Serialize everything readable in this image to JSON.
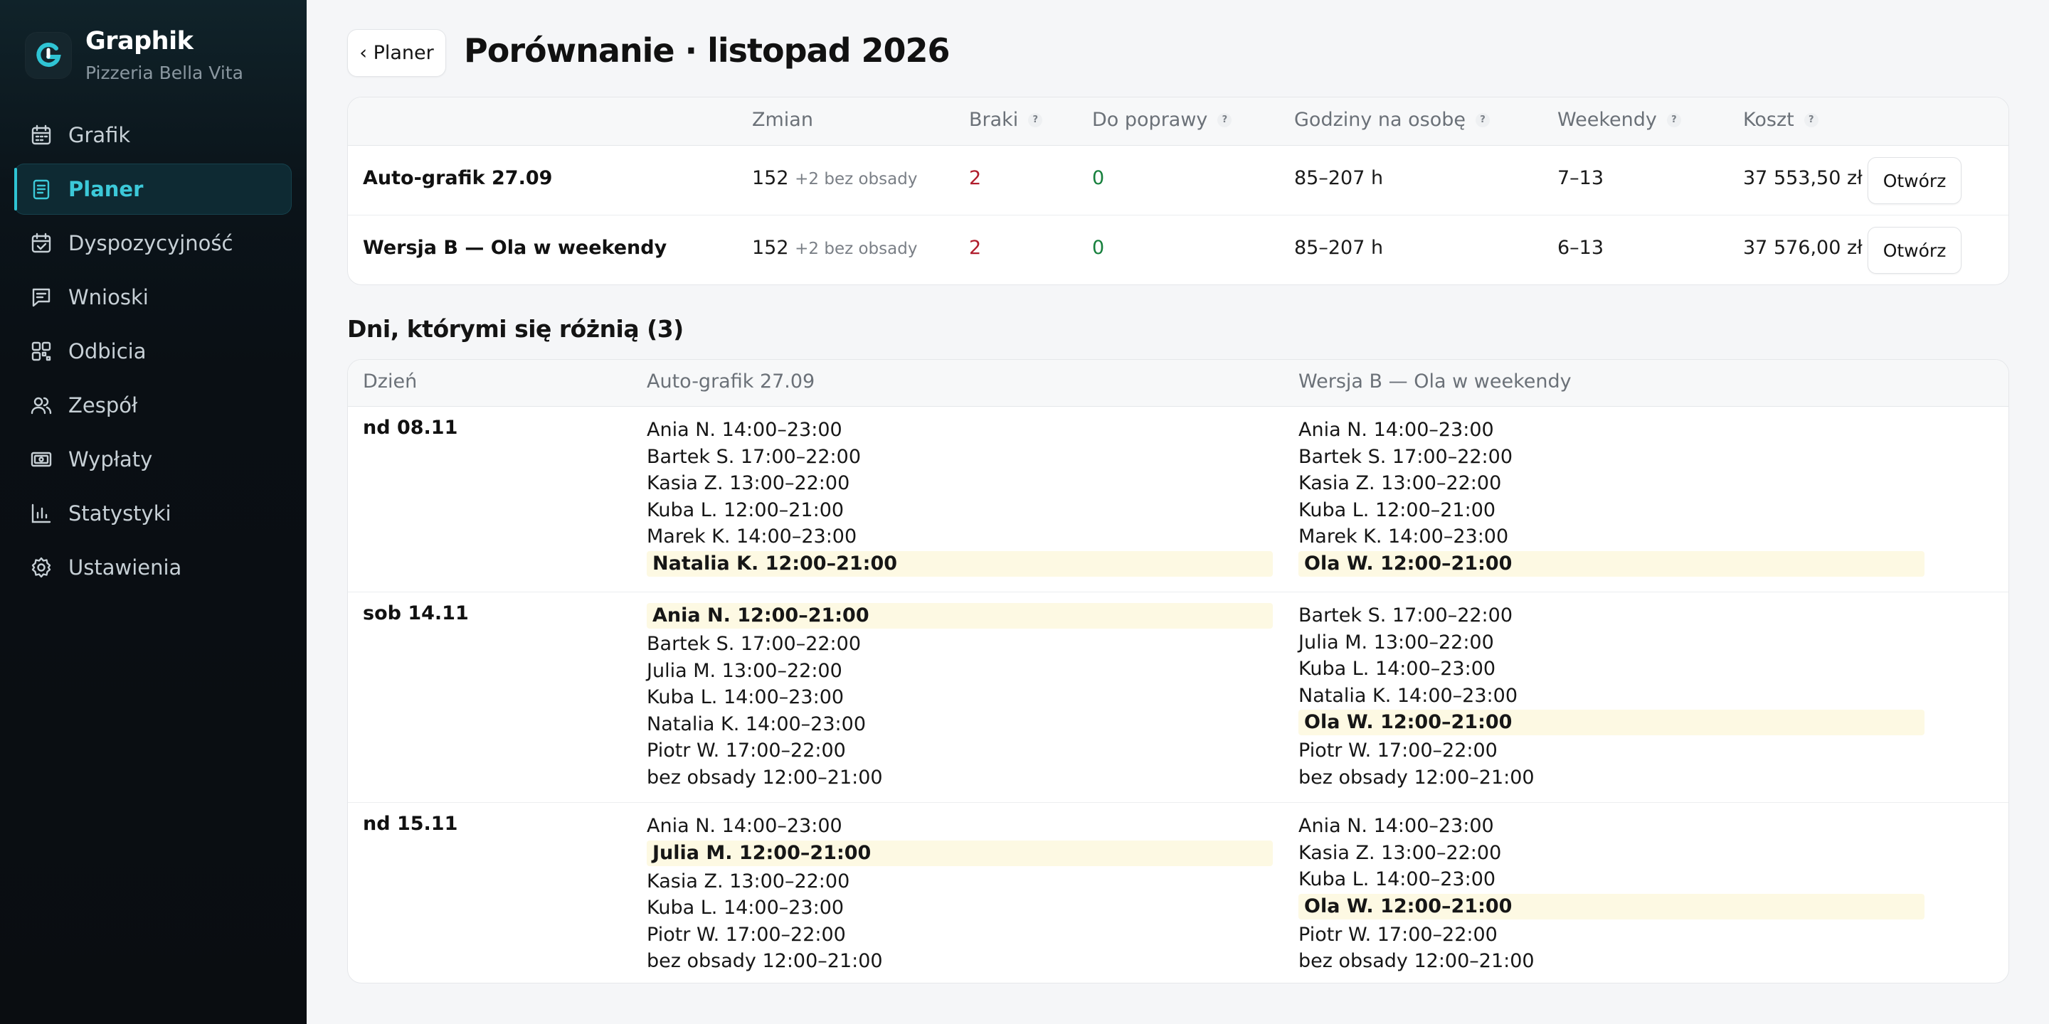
{
  "sidebar": {
    "brand_name": "Graphik",
    "brand_sub": "Pizzeria Bella Vita",
    "accent": "#2fc4d4",
    "items": [
      {
        "label": "Grafik",
        "icon": "calendar-icon"
      },
      {
        "label": "Planer",
        "icon": "clipboard-icon",
        "active": true
      },
      {
        "label": "Dyspozycyjność",
        "icon": "calendar-check-icon"
      },
      {
        "label": "Wnioski",
        "icon": "message-icon"
      },
      {
        "label": "Odbicia",
        "icon": "qr-icon"
      },
      {
        "label": "Zespół",
        "icon": "users-icon"
      },
      {
        "label": "Wypłaty",
        "icon": "banknote-icon"
      },
      {
        "label": "Statystyki",
        "icon": "bar-chart-icon"
      },
      {
        "label": "Ustawienia",
        "icon": "gear-icon"
      }
    ]
  },
  "header": {
    "back_label": "‹ Planer",
    "title": "Porównanie · listopad 2026"
  },
  "compare": {
    "columns": [
      "Zmian",
      "Braki",
      "Do poprawy",
      "Godziny na osobę",
      "Weekendy",
      "Koszt"
    ],
    "help_glyph": "?",
    "rows": [
      {
        "name": "Auto-grafik 27.09",
        "shifts": "152",
        "shifts_extra": "+2 bez obsady",
        "gaps": "2",
        "to_fix": "0",
        "hours": "85–207 h",
        "weekends": "7–13",
        "cost": "37 553,50 zł",
        "open_label": "Otwórz"
      },
      {
        "name": "Wersja B — Ola w weekendy",
        "shifts": "152",
        "shifts_extra": "+2 bez obsady",
        "gaps": "2",
        "to_fix": "0",
        "hours": "85–207 h",
        "weekends": "6–13",
        "cost": "37 576,00 zł",
        "open_label": "Otwórz"
      }
    ]
  },
  "diff": {
    "title": "Dni, którymi się różnią (3)",
    "columns": [
      "Dzień",
      "Auto-grafik 27.09",
      "Wersja B — Ola w weekendy"
    ],
    "highlight_color": "#fdf9e3",
    "days": [
      {
        "day": "nd 08.11",
        "a": [
          {
            "text": "Ania N. 14:00–23:00"
          },
          {
            "text": "Bartek S. 17:00–22:00"
          },
          {
            "text": "Kasia Z. 13:00–22:00"
          },
          {
            "text": "Kuba L. 12:00–21:00"
          },
          {
            "text": "Marek K. 14:00–23:00"
          },
          {
            "text": "Natalia K. 12:00–21:00",
            "hl": true
          }
        ],
        "b": [
          {
            "text": "Ania N. 14:00–23:00"
          },
          {
            "text": "Bartek S. 17:00–22:00"
          },
          {
            "text": "Kasia Z. 13:00–22:00"
          },
          {
            "text": "Kuba L. 12:00–21:00"
          },
          {
            "text": "Marek K. 14:00–23:00"
          },
          {
            "text": "Ola W. 12:00–21:00",
            "hl": true
          }
        ]
      },
      {
        "day": "sob 14.11",
        "a": [
          {
            "text": "Ania N. 12:00–21:00",
            "hl": true
          },
          {
            "text": "Bartek S. 17:00–22:00"
          },
          {
            "text": "Julia M. 13:00–22:00"
          },
          {
            "text": "Kuba L. 14:00–23:00"
          },
          {
            "text": "Natalia K. 14:00–23:00"
          },
          {
            "text": "Piotr W. 17:00–22:00"
          },
          {
            "text": "bez obsady 12:00–21:00"
          }
        ],
        "b": [
          {
            "text": "Bartek S. 17:00–22:00"
          },
          {
            "text": "Julia M. 13:00–22:00"
          },
          {
            "text": "Kuba L. 14:00–23:00"
          },
          {
            "text": "Natalia K. 14:00–23:00"
          },
          {
            "text": "Ola W. 12:00–21:00",
            "hl": true
          },
          {
            "text": "Piotr W. 17:00–22:00"
          },
          {
            "text": "bez obsady 12:00–21:00"
          }
        ]
      },
      {
        "day": "nd 15.11",
        "a": [
          {
            "text": "Ania N. 14:00–23:00"
          },
          {
            "text": "Julia M. 12:00–21:00",
            "hl": true
          },
          {
            "text": "Kasia Z. 13:00–22:00"
          },
          {
            "text": "Kuba L. 14:00–23:00"
          },
          {
            "text": "Piotr W. 17:00–22:00"
          },
          {
            "text": "bez obsady 12:00–21:00"
          }
        ],
        "b": [
          {
            "text": "Ania N. 14:00–23:00"
          },
          {
            "text": "Kasia Z. 13:00–22:00"
          },
          {
            "text": "Kuba L. 14:00–23:00"
          },
          {
            "text": "Ola W. 12:00–21:00",
            "hl": true
          },
          {
            "text": "Piotr W. 17:00–22:00"
          },
          {
            "text": "bez obsady 12:00–21:00"
          }
        ]
      }
    ]
  }
}
